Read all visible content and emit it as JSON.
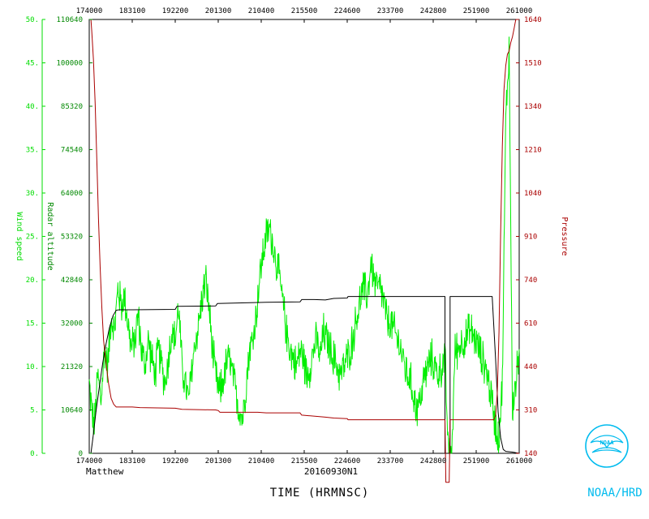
{
  "chart_data": {
    "type": "line",
    "storm_name": "Matthew",
    "storm_id": "20160930N1",
    "xlabel": "TIME (HRMNSC)",
    "x_ticks": [
      "174000",
      "183100",
      "192200",
      "201300",
      "210400",
      "215500",
      "224600",
      "233700",
      "242800",
      "251900",
      "261000"
    ],
    "x_range": [
      "174000",
      "261000"
    ],
    "axes": [
      {
        "label": "Wind speed",
        "color": "#00dd00",
        "ylim": [
          0,
          50
        ],
        "ticks": [
          "0.",
          "5.",
          "10.",
          "15.",
          "20.",
          "25.",
          "30.",
          "35.",
          "40.",
          "45.",
          "50."
        ]
      },
      {
        "label": "Radar altitude",
        "color": "#008800",
        "ylim": [
          0,
          110640
        ],
        "ticks": [
          "0",
          "10640",
          "21320",
          "32000",
          "42840",
          "53320",
          "64000",
          "74540",
          "85320",
          "100000",
          "110640"
        ]
      },
      {
        "label": "Pressure",
        "color": "#aa0000",
        "ylim": [
          140,
          1640
        ],
        "ticks": [
          "140",
          "310",
          "440",
          "610",
          "740",
          "910",
          "1040",
          "1210",
          "1340",
          "1510",
          "1640"
        ]
      }
    ],
    "series": [
      {
        "name": "Wind speed",
        "axis": "Wind speed",
        "color": "#00ee00",
        "noise": 1.3,
        "points": [
          [
            174000,
            8
          ],
          [
            174300,
            5
          ],
          [
            174600,
            3
          ],
          [
            175000,
            9
          ],
          [
            175400,
            6
          ],
          [
            175800,
            12
          ],
          [
            180200,
            10
          ],
          [
            180600,
            16
          ],
          [
            181000,
            14
          ],
          [
            181400,
            19
          ],
          [
            181800,
            17
          ],
          [
            182200,
            18
          ],
          [
            182600,
            15
          ],
          [
            183000,
            12
          ],
          [
            183400,
            13
          ],
          [
            183800,
            16
          ],
          [
            184200,
            12
          ],
          [
            184600,
            10
          ],
          [
            185000,
            13
          ],
          [
            185400,
            11
          ],
          [
            185800,
            9
          ],
          [
            190200,
            12
          ],
          [
            190600,
            10
          ],
          [
            191000,
            8
          ],
          [
            191400,
            11
          ],
          [
            191800,
            14
          ],
          [
            192200,
            13
          ],
          [
            192600,
            17
          ],
          [
            193000,
            10
          ],
          [
            193400,
            8
          ],
          [
            193800,
            6
          ],
          [
            194200,
            10
          ],
          [
            194600,
            13
          ],
          [
            195000,
            15
          ],
          [
            195400,
            18
          ],
          [
            195800,
            20
          ],
          [
            200200,
            17
          ],
          [
            200600,
            12
          ],
          [
            201000,
            9
          ],
          [
            201400,
            7
          ],
          [
            201800,
            8
          ],
          [
            202200,
            10
          ],
          [
            202600,
            11
          ],
          [
            203000,
            9
          ],
          [
            203400,
            7
          ],
          [
            203800,
            5
          ],
          [
            204200,
            4
          ],
          [
            204600,
            8
          ],
          [
            205000,
            12
          ],
          [
            205400,
            13
          ],
          [
            205800,
            16
          ],
          [
            210200,
            20
          ],
          [
            210600,
            23
          ],
          [
            211000,
            25
          ],
          [
            211400,
            26
          ],
          [
            211800,
            24
          ],
          [
            212200,
            22
          ],
          [
            212600,
            20
          ],
          [
            213000,
            17
          ],
          [
            213400,
            14
          ],
          [
            213800,
            12
          ],
          [
            214200,
            11
          ],
          [
            214600,
            10
          ],
          [
            215000,
            12
          ],
          [
            215400,
            11
          ],
          [
            215800,
            9
          ],
          [
            220200,
            10
          ],
          [
            220600,
            12
          ],
          [
            221000,
            13
          ],
          [
            221400,
            11
          ],
          [
            221800,
            14
          ],
          [
            222200,
            13
          ],
          [
            222600,
            12
          ],
          [
            223000,
            11
          ],
          [
            223400,
            10
          ],
          [
            223800,
            9
          ],
          [
            224200,
            10
          ],
          [
            224600,
            11
          ],
          [
            225000,
            12
          ],
          [
            225400,
            14
          ],
          [
            225800,
            16
          ],
          [
            230200,
            18
          ],
          [
            230600,
            19
          ],
          [
            231000,
            18
          ],
          [
            231400,
            22
          ],
          [
            231800,
            20
          ],
          [
            232200,
            19
          ],
          [
            232600,
            19
          ],
          [
            233000,
            17
          ],
          [
            233400,
            15
          ],
          [
            233800,
            15
          ],
          [
            234200,
            14
          ],
          [
            234600,
            13
          ],
          [
            235000,
            12
          ],
          [
            235400,
            10
          ],
          [
            235800,
            9
          ],
          [
            240200,
            8
          ],
          [
            240600,
            6
          ],
          [
            241000,
            5
          ],
          [
            241400,
            7
          ],
          [
            241800,
            9
          ],
          [
            242200,
            10
          ],
          [
            242600,
            11
          ],
          [
            243000,
            10
          ],
          [
            243400,
            9
          ],
          [
            243800,
            10
          ],
          [
            244200,
            11
          ],
          [
            244600,
            0
          ],
          [
            245000,
            0
          ],
          [
            245400,
            12
          ],
          [
            245800,
            12
          ],
          [
            250200,
            13
          ],
          [
            250600,
            13
          ],
          [
            251000,
            14
          ],
          [
            251400,
            14
          ],
          [
            251800,
            13
          ],
          [
            252200,
            12
          ],
          [
            252600,
            11
          ],
          [
            253000,
            10
          ],
          [
            253400,
            8
          ],
          [
            253800,
            6
          ],
          [
            254200,
            3
          ],
          [
            254600,
            2
          ],
          [
            255000,
            8
          ],
          [
            255400,
            38
          ],
          [
            255800,
            47
          ],
          [
            260200,
            5
          ],
          [
            260600,
            8
          ],
          [
            261000,
            12
          ]
        ]
      },
      {
        "name": "Radar altitude",
        "axis": "Radar altitude",
        "color": "#000000",
        "noise": 0,
        "points": [
          [
            174000,
            0
          ],
          [
            174200,
            0
          ],
          [
            174500,
            5000
          ],
          [
            174800,
            10640
          ],
          [
            175200,
            17000
          ],
          [
            175600,
            23000
          ],
          [
            180000,
            28000
          ],
          [
            180400,
            32000
          ],
          [
            180800,
            35000
          ],
          [
            181200,
            36500
          ],
          [
            181600,
            36600
          ],
          [
            183100,
            36600
          ],
          [
            192200,
            36700
          ],
          [
            192400,
            37500
          ],
          [
            201000,
            37600
          ],
          [
            201200,
            38200
          ],
          [
            211000,
            38500
          ],
          [
            215000,
            38600
          ],
          [
            215200,
            39200
          ],
          [
            220700,
            39200
          ],
          [
            222000,
            39100
          ],
          [
            223000,
            39500
          ],
          [
            224600,
            39600
          ],
          [
            224700,
            40000
          ],
          [
            244200,
            40000
          ],
          [
            244200,
            0
          ],
          [
            244800,
            0
          ],
          [
            244800,
            40000
          ],
          [
            253800,
            40000
          ],
          [
            254200,
            24000
          ],
          [
            254500,
            10640
          ],
          [
            254800,
            4000
          ],
          [
            255100,
            1000
          ],
          [
            255400,
            500
          ],
          [
            260200,
            300
          ],
          [
            261000,
            0
          ]
        ]
      },
      {
        "name": "Pressure",
        "axis": "Pressure",
        "color": "#aa0000",
        "noise": 0,
        "points": [
          [
            174000,
            1640
          ],
          [
            174200,
            1640
          ],
          [
            174300,
            1600
          ],
          [
            174500,
            1500
          ],
          [
            174700,
            1350
          ],
          [
            174900,
            1150
          ],
          [
            175100,
            950
          ],
          [
            175300,
            780
          ],
          [
            175500,
            640
          ],
          [
            175700,
            530
          ],
          [
            180000,
            450
          ],
          [
            180300,
            380
          ],
          [
            180600,
            330
          ],
          [
            180900,
            310
          ],
          [
            181200,
            300
          ],
          [
            183100,
            300
          ],
          [
            184000,
            298
          ],
          [
            192200,
            296
          ],
          [
            193000,
            292
          ],
          [
            201000,
            290
          ],
          [
            201300,
            288
          ],
          [
            201500,
            282
          ],
          [
            210000,
            282
          ],
          [
            211000,
            280
          ],
          [
            215000,
            280
          ],
          [
            215200,
            272
          ],
          [
            220000,
            270
          ],
          [
            222000,
            265
          ],
          [
            223000,
            262
          ],
          [
            224600,
            260
          ],
          [
            224700,
            256
          ],
          [
            244200,
            256
          ],
          [
            244300,
            40
          ],
          [
            244700,
            40
          ],
          [
            244800,
            256
          ],
          [
            254000,
            256
          ],
          [
            254200,
            270
          ],
          [
            254400,
            350
          ],
          [
            254600,
            560
          ],
          [
            254800,
            900
          ],
          [
            255000,
            1200
          ],
          [
            255200,
            1400
          ],
          [
            255400,
            1480
          ],
          [
            255600,
            1520
          ],
          [
            255800,
            1530
          ],
          [
            260000,
            1560
          ],
          [
            260200,
            1580
          ],
          [
            260400,
            1610
          ],
          [
            260600,
            1640
          ]
        ]
      }
    ]
  },
  "logo": {
    "lettering": "NOAA",
    "caption": "NOAA/HRD"
  }
}
